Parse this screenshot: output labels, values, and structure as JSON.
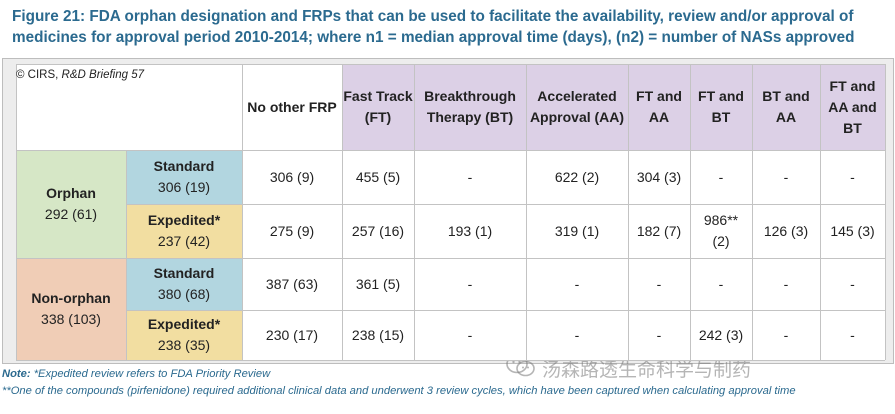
{
  "caption": {
    "line1": "Figure 21: FDA orphan designation and FRPs that can be used to facilitate the availability, review and/or approval of",
    "line2": "medicines for approval period 2010-2014; where n1 = median approval time (days), (n2) = number of NASs approved"
  },
  "copyright": {
    "prefix": "© CIRS, ",
    "source": "R&D Briefing 57"
  },
  "columns": [
    "No other FRP",
    "Fast Track (FT)",
    "Breakthrough Therapy (BT)",
    "Accelerated Approval (AA)",
    "FT and AA",
    "FT and BT",
    "BT and AA",
    "FT and AA and BT"
  ],
  "groups": [
    {
      "name": "Orphan",
      "summary": "292 (61)",
      "rows": [
        {
          "label": "Standard",
          "summary": "306 (19)",
          "type": "standard",
          "values": [
            "306 (9)",
            "455 (5)",
            "-",
            "622 (2)",
            "304 (3)",
            "-",
            "-",
            "-"
          ]
        },
        {
          "label": "Expedited*",
          "summary": "237 (42)",
          "type": "expedited",
          "values": [
            "275 (9)",
            "257 (16)",
            "193 (1)",
            "319 (1)",
            "182 (7)",
            "986** (2)",
            "126 (3)",
            "145 (3)"
          ]
        }
      ]
    },
    {
      "name": "Non-orphan",
      "summary": "338 (103)",
      "rows": [
        {
          "label": "Standard",
          "summary": "380 (68)",
          "type": "standard",
          "values": [
            "387 (63)",
            "361 (5)",
            "-",
            "-",
            "-",
            "-",
            "-",
            "-"
          ]
        },
        {
          "label": "Expedited*",
          "summary": "238 (35)",
          "type": "expedited",
          "values": [
            "230 (17)",
            "238 (15)",
            "-",
            "-",
            "-",
            "242 (3)",
            "-",
            "-"
          ]
        }
      ]
    }
  ],
  "notes": {
    "note1_label": "Note:",
    "note1_text": " *Expedited review refers to FDA Priority Review",
    "note2_text": "**One of the compounds (pirfenidone) required additional clinical data and underwent 3 review cycles, which have been captured when calculating approval time"
  },
  "watermark": {
    "text": "汤森路透生命科学与制药",
    "icon": "wechat-icon"
  },
  "colors": {
    "caption": "#2b6a8f",
    "orphan_bg": "#d6e7c6",
    "nonorphan_bg": "#f0cdb6",
    "standard_bg": "#b2d6e0",
    "expedited_bg": "#f2dea1",
    "special_col_bg": "#dcd0e6",
    "combo_col_bg": "#dcd0e6"
  }
}
